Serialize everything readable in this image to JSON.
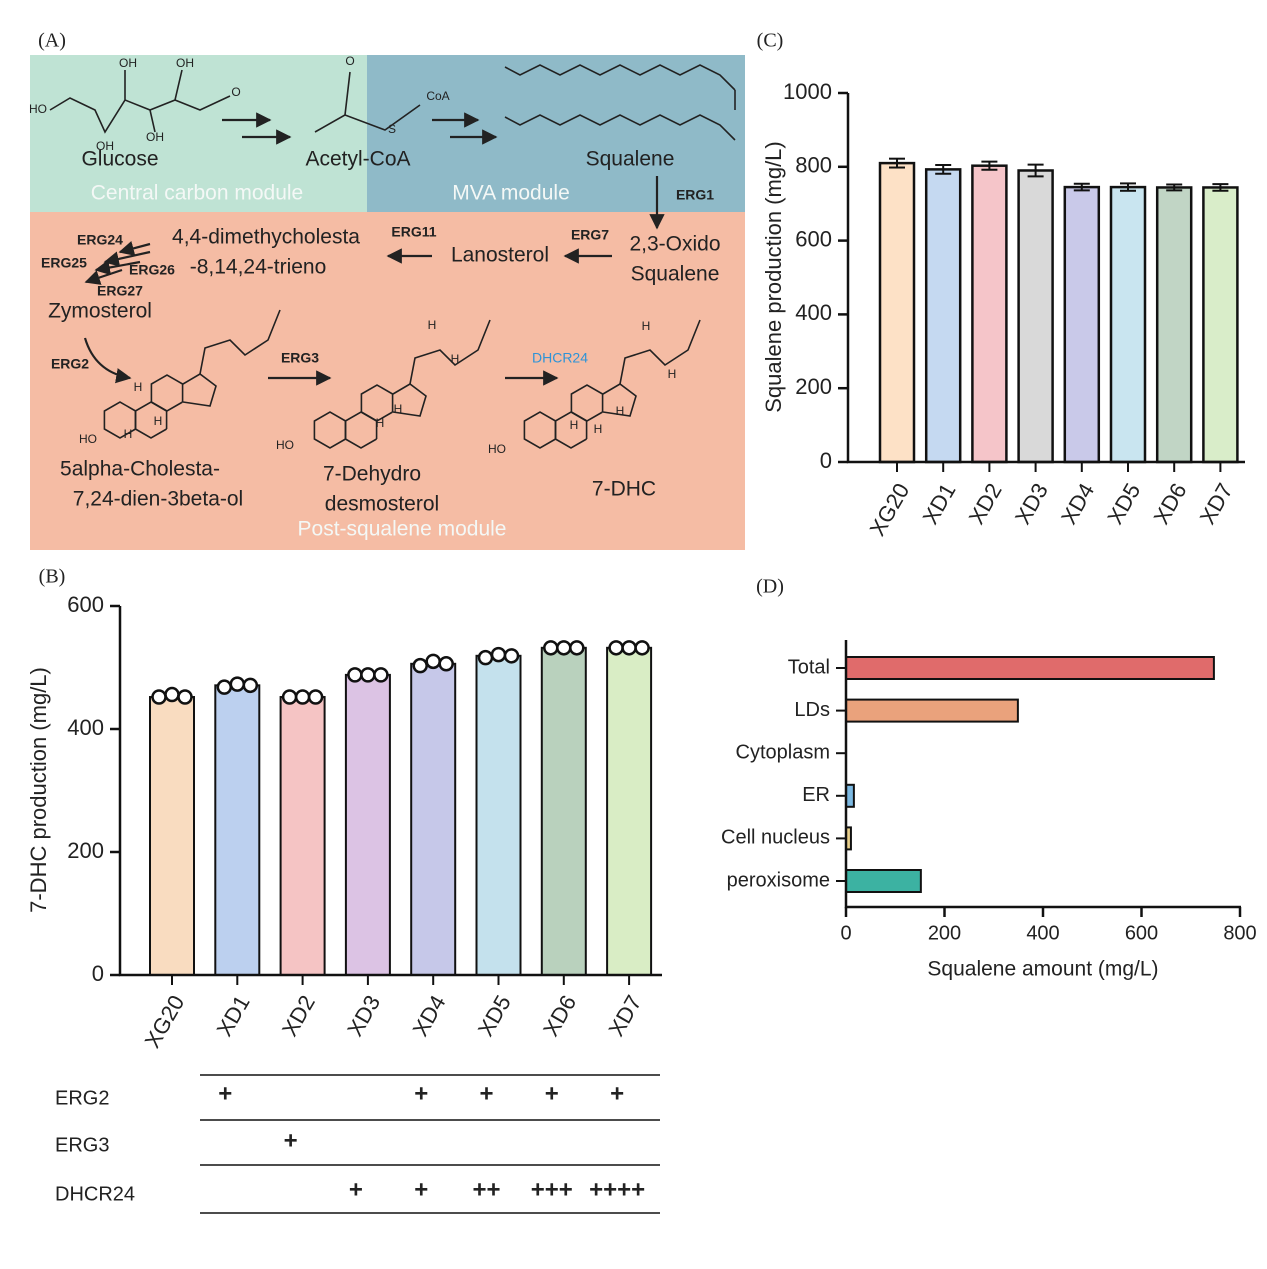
{
  "pathway": {
    "panel": "(A)",
    "modules": [
      "Central carbon module",
      "MVA module",
      "Post-squalene module"
    ],
    "compounds": [
      [
        "Glucose"
      ],
      [
        "Acetyl-CoA"
      ],
      [
        "Squalene"
      ],
      [
        "2,3-Oxido",
        "Squalene"
      ],
      [
        "Lanosterol"
      ],
      [
        "4,4-dimethycholesta",
        "-8,14,24-trieno"
      ],
      [
        "Zymosterol"
      ],
      [
        "5alpha-Cholesta-",
        "7,24-dien-3beta-ol"
      ],
      [
        "7-Dehydro",
        "desmosterol"
      ],
      [
        "7-DHC"
      ]
    ],
    "enzymes": [
      "ERG1",
      "ERG7",
      "ERG11",
      "ERG24",
      "ERG25",
      "ERG26",
      "ERG27",
      "ERG2",
      "ERG3",
      "DHCR24"
    ],
    "atom_labels": [
      "HO",
      "OH",
      "OH",
      "OH",
      "OH",
      "O",
      "O",
      "S",
      "CoA",
      "H",
      "H",
      "H",
      "HO",
      "H",
      "H",
      "H",
      "H",
      "HO",
      "H",
      "H",
      "H",
      "H",
      "H",
      "HO"
    ]
  },
  "chart_data": [
    {
      "type": "bar",
      "panel": "(B)",
      "y_label": "7-DHC production (mg/L)",
      "categories": [
        "XG20",
        "XD1",
        "XD2",
        "XD3",
        "XD4",
        "XD5",
        "XD6",
        "XD7"
      ],
      "values": [
        452,
        471,
        452,
        488,
        506,
        519,
        532,
        532
      ],
      "points": [
        [
          452,
          456,
          452
        ],
        [
          468,
          473,
          471
        ],
        [
          452,
          452,
          452
        ],
        [
          488,
          488,
          488
        ],
        [
          503,
          510,
          506
        ],
        [
          516,
          521,
          519
        ],
        [
          532,
          532,
          532
        ],
        [
          532,
          532,
          532
        ]
      ],
      "colors": [
        "#f9dcc0",
        "#bcd0ef",
        "#f5c4c4",
        "#dcc3e4",
        "#c6c8e9",
        "#c4e1ed",
        "#b9d1bd",
        "#d9edc5"
      ],
      "ylim": [
        0,
        600
      ],
      "yticks": [
        0,
        200,
        400,
        600
      ]
    },
    {
      "type": "bar",
      "panel": "(C)",
      "y_label": "Squalene production (mg/L)",
      "categories": [
        "XG20",
        "XD1",
        "XD2",
        "XD3",
        "XD4",
        "XD5",
        "XD6",
        "XD7"
      ],
      "values": [
        810,
        793,
        803,
        790,
        745,
        745,
        744,
        744
      ],
      "errors": [
        12,
        12,
        11,
        16,
        9,
        10,
        8,
        9
      ],
      "colors": [
        "#fde1c6",
        "#c5d9f1",
        "#f5c5c9",
        "#d9d9d9",
        "#c9c9e9",
        "#c9e5f0",
        "#c1d5c5",
        "#d9edc9"
      ],
      "ylim": [
        0,
        1000
      ],
      "yticks": [
        0,
        200,
        400,
        600,
        800,
        1000
      ]
    },
    {
      "type": "hbar",
      "panel": "(D)",
      "x_label": "Squalene amount (mg/L)",
      "categories": [
        "Total",
        "LDs",
        "Cytoplasm",
        "ER",
        "Cell nucleus",
        "peroxisome"
      ],
      "values": [
        747,
        349,
        0,
        16,
        10,
        152
      ],
      "colors": [
        "#e06b6b",
        "#eaa27c",
        null,
        "#7cb9e2",
        "#ead18c",
        "#3cb2a2"
      ],
      "xlim": [
        0,
        800
      ],
      "xticks": [
        0,
        200,
        400,
        600,
        800
      ]
    }
  ],
  "strain_table": {
    "rows": [
      {
        "gene": "ERG2",
        "cells": [
          null,
          "+",
          null,
          null,
          "+",
          "+",
          "+",
          "+"
        ]
      },
      {
        "gene": "ERG3",
        "cells": [
          null,
          null,
          "+",
          null,
          null,
          null,
          null,
          null
        ]
      },
      {
        "gene": "DHCR24",
        "cells": [
          null,
          null,
          null,
          "+",
          "+",
          "++",
          "+++",
          "++++"
        ]
      }
    ]
  }
}
